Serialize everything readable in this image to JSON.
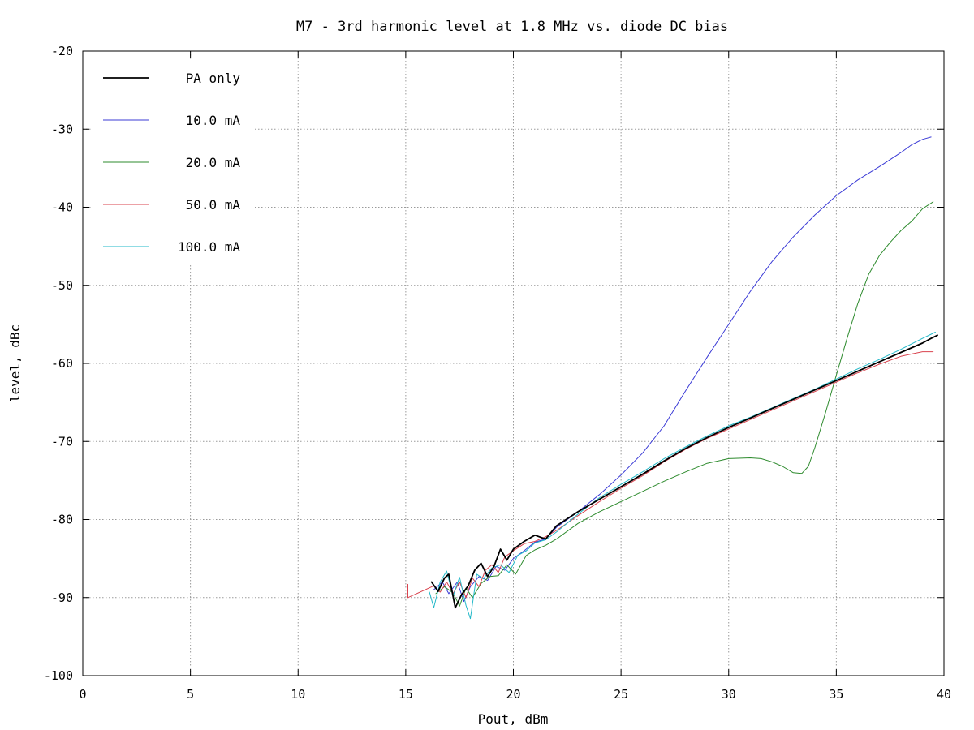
{
  "chart_data": {
    "type": "line",
    "title": "M7 - 3rd harmonic level at 1.8 MHz vs. diode DC bias",
    "xlabel": "Pout, dBm",
    "ylabel": "level, dBc",
    "xlim": [
      0,
      40
    ],
    "ylim": [
      -100,
      -20
    ],
    "x_ticks": [
      0,
      5,
      10,
      15,
      20,
      25,
      30,
      35,
      40
    ],
    "y_ticks": [
      -100,
      -90,
      -80,
      -70,
      -60,
      -50,
      -40,
      -30,
      -20
    ],
    "x_tick_labels": [
      "0",
      "5",
      "10",
      "15",
      "20",
      "25",
      "30",
      "35",
      "40"
    ],
    "y_tick_labels": [
      "-100",
      "-90",
      "-80",
      "-70",
      "-60",
      "-50",
      "-40",
      "-30",
      "-20"
    ],
    "grid": true,
    "legend_position": "top-left",
    "series": [
      {
        "name": "PA only",
        "color": "#000000",
        "x": [
          16.2,
          16.5,
          16.8,
          17.0,
          17.3,
          17.6,
          17.9,
          18.2,
          18.5,
          18.8,
          19.1,
          19.4,
          19.7,
          20.0,
          20.5,
          21.0,
          21.5,
          22.0,
          23.0,
          24.0,
          25.0,
          26.0,
          27.0,
          28.0,
          29.0,
          30.0,
          31.0,
          32.0,
          33.0,
          34.0,
          35.0,
          36.0,
          37.0,
          38.0,
          39.0,
          39.4,
          39.7
        ],
        "y": [
          -88.0,
          -89.2,
          -87.5,
          -87.0,
          -91.3,
          -89.6,
          -88.5,
          -86.5,
          -85.6,
          -87.3,
          -86.0,
          -83.8,
          -85.2,
          -83.8,
          -82.8,
          -82.0,
          -82.5,
          -80.8,
          -79.0,
          -77.4,
          -75.8,
          -74.2,
          -72.5,
          -70.9,
          -69.5,
          -68.2,
          -67.0,
          -65.8,
          -64.6,
          -63.4,
          -62.2,
          -61.0,
          -59.8,
          -58.6,
          -57.4,
          -56.8,
          -56.4
        ]
      },
      {
        "name": "10.0 mA",
        "color": "#3b3bd6",
        "x": [
          16.3,
          16.7,
          17.0,
          17.4,
          17.7,
          18.0,
          18.4,
          18.8,
          19.2,
          19.6,
          20.0,
          20.5,
          21.0,
          21.5,
          22.0,
          23.0,
          24.0,
          25.0,
          26.0,
          27.0,
          28.0,
          29.0,
          30.0,
          31.0,
          32.0,
          33.0,
          34.0,
          35.0,
          36.0,
          37.0,
          38.0,
          38.5,
          39.0,
          39.4
        ],
        "y": [
          -89.0,
          -88.0,
          -89.5,
          -88.0,
          -90.5,
          -88.6,
          -87.3,
          -87.8,
          -86.0,
          -86.5,
          -85.0,
          -84.0,
          -82.9,
          -82.5,
          -81.0,
          -79.0,
          -76.8,
          -74.3,
          -71.5,
          -68.0,
          -63.5,
          -59.2,
          -55.0,
          -50.8,
          -47.0,
          -43.8,
          -41.0,
          -38.5,
          -36.5,
          -34.8,
          -33.0,
          -32.0,
          -31.3,
          -31.0
        ]
      },
      {
        "name": "20.0 mA",
        "color": "#2e8b2e",
        "x": [
          16.4,
          16.8,
          17.2,
          17.5,
          17.8,
          18.1,
          18.5,
          18.9,
          19.3,
          19.7,
          20.1,
          20.6,
          21.0,
          21.5,
          22.0,
          23.0,
          24.0,
          25.0,
          26.0,
          27.0,
          28.0,
          29.0,
          30.0,
          31.0,
          31.5,
          32.0,
          32.5,
          33.0,
          33.4,
          33.7,
          34.0,
          34.5,
          35.0,
          35.5,
          36.0,
          36.5,
          37.0,
          37.5,
          38.0,
          38.5,
          39.0,
          39.5
        ],
        "y": [
          -89.5,
          -88.6,
          -89.4,
          -91.1,
          -88.8,
          -90.0,
          -88.2,
          -87.3,
          -87.2,
          -85.8,
          -87.0,
          -84.6,
          -83.9,
          -83.3,
          -82.5,
          -80.5,
          -79.0,
          -77.7,
          -76.4,
          -75.1,
          -73.9,
          -72.8,
          -72.2,
          -72.1,
          -72.2,
          -72.6,
          -73.2,
          -74.0,
          -74.1,
          -73.2,
          -70.8,
          -66.3,
          -61.5,
          -56.8,
          -52.3,
          -48.6,
          -46.2,
          -44.5,
          -43.0,
          -41.8,
          -40.2,
          -39.3
        ]
      },
      {
        "name": "50.0 mA",
        "color": "#d9434e",
        "x": [
          15.1,
          15.1,
          16.3,
          16.6,
          16.9,
          17.2,
          17.5,
          17.8,
          18.1,
          18.4,
          18.7,
          19.0,
          19.3,
          19.6,
          20.0,
          20.5,
          21.0,
          21.5,
          22.0,
          23.0,
          24.0,
          25.0,
          26.0,
          27.0,
          28.0,
          29.0,
          30.0,
          31.0,
          32.0,
          33.0,
          34.0,
          35.0,
          36.0,
          37.0,
          38.0,
          38.5,
          39.0,
          39.5
        ],
        "y": [
          -88.3,
          -90.0,
          -88.5,
          -89.3,
          -88.0,
          -89.5,
          -88.0,
          -90.0,
          -87.5,
          -88.6,
          -86.5,
          -85.8,
          -86.8,
          -84.8,
          -84.0,
          -83.1,
          -82.8,
          -82.2,
          -81.4,
          -79.5,
          -77.7,
          -76.0,
          -74.4,
          -72.6,
          -71.0,
          -69.6,
          -68.4,
          -67.2,
          -66.0,
          -64.8,
          -63.6,
          -62.4,
          -61.2,
          -60.1,
          -59.1,
          -58.8,
          -58.5,
          -58.5
        ]
      },
      {
        "name": "100.0 mA",
        "color": "#22b8c8",
        "x": [
          16.1,
          16.3,
          16.6,
          16.9,
          17.2,
          17.5,
          17.8,
          18.0,
          18.3,
          18.6,
          19.0,
          19.4,
          19.8,
          20.2,
          20.6,
          21.0,
          21.5,
          22.0,
          23.0,
          24.0,
          25.0,
          26.0,
          27.0,
          28.0,
          29.0,
          30.0,
          31.0,
          32.0,
          33.0,
          34.0,
          35.0,
          36.0,
          37.0,
          38.0,
          39.0,
          39.6
        ],
        "y": [
          -89.3,
          -91.3,
          -88.0,
          -86.6,
          -89.8,
          -87.4,
          -91.0,
          -92.7,
          -87.0,
          -87.6,
          -86.2,
          -85.8,
          -86.8,
          -84.6,
          -84.0,
          -83.0,
          -82.6,
          -81.6,
          -79.3,
          -77.2,
          -75.5,
          -73.9,
          -72.2,
          -70.7,
          -69.3,
          -68.0,
          -66.9,
          -65.7,
          -64.5,
          -63.3,
          -62.0,
          -60.7,
          -59.5,
          -58.2,
          -56.8,
          -56.0
        ]
      }
    ]
  }
}
